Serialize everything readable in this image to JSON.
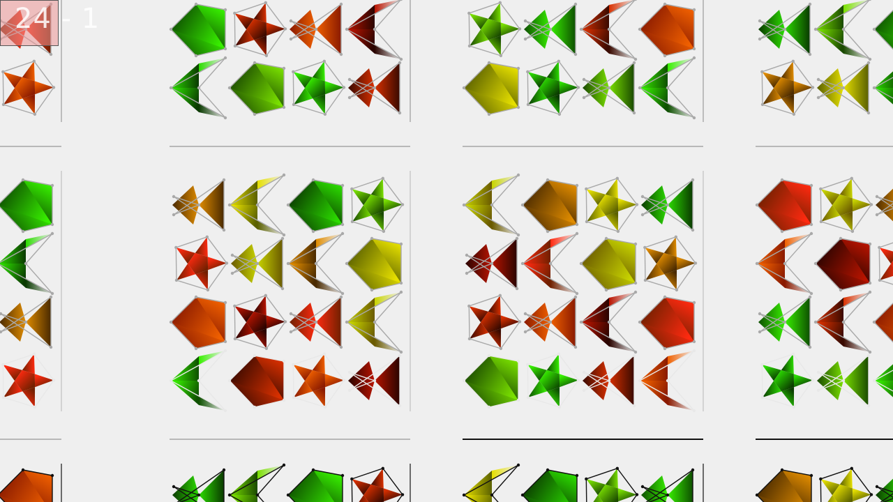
{
  "overlay": {
    "counter_text": "24 - 1"
  },
  "colors": {
    "background": "#efefef",
    "separator_light": "#c8c8c8",
    "separator_dark": "#111111",
    "counter_fill": "#ec9696",
    "red": "#ff1a00",
    "green": "#1aee00",
    "dark_green": "#145a00",
    "yellow_green": "#b4d800",
    "orange": "#f07800",
    "dark_red": "#5a0c00"
  },
  "tile_grid": {
    "columns": 4,
    "tiles_per_band_row": 4,
    "shape_kinds": [
      "kite",
      "pentagon",
      "star",
      "bowtie"
    ]
  }
}
